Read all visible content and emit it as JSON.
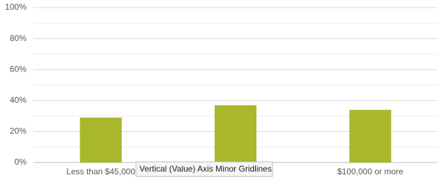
{
  "chart_data": {
    "type": "bar",
    "categories": [
      "Less than $45,000",
      null,
      "$100,000 or more"
    ],
    "values": [
      29,
      37,
      34
    ],
    "color": "#a8b82a",
    "ylim": [
      0,
      100
    ],
    "yticks": [
      {
        "value": 0,
        "label": "0%"
      },
      {
        "value": 20,
        "label": "20%"
      },
      {
        "value": 40,
        "label": "40%"
      },
      {
        "value": 60,
        "label": "60%"
      },
      {
        "value": 80,
        "label": "80%"
      },
      {
        "value": 100,
        "label": "100%"
      }
    ],
    "grid": true,
    "minor_grid": true,
    "tooltip": "Vertical (Value) Axis Minor Gridlines"
  }
}
